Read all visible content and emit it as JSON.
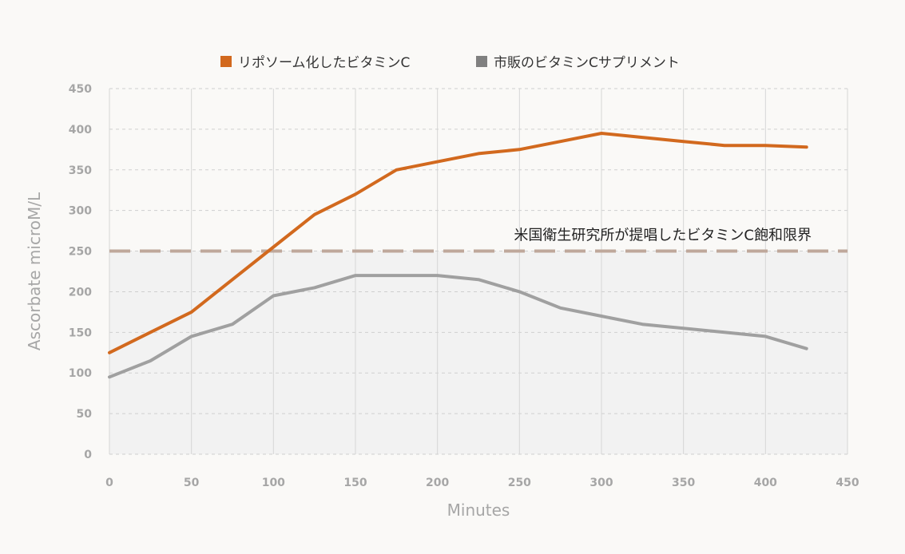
{
  "chart_data": {
    "type": "line",
    "xlabel": "Minutes",
    "ylabel": "Ascorbate microM/L",
    "xlim": [
      0,
      450
    ],
    "ylim": [
      0,
      450
    ],
    "xticks": [
      0,
      50,
      100,
      150,
      200,
      250,
      300,
      350,
      400,
      450
    ],
    "yticks": [
      0,
      50,
      100,
      150,
      200,
      250,
      300,
      350,
      400,
      450
    ],
    "grid": true,
    "legend_position": "top-center",
    "series": [
      {
        "name": "リポソーム化したビタミンC",
        "color": "#d2691e",
        "x": [
          0,
          25,
          50,
          75,
          100,
          125,
          150,
          175,
          200,
          225,
          250,
          275,
          300,
          325,
          350,
          375,
          400,
          425
        ],
        "y": [
          125,
          150,
          175,
          215,
          255,
          295,
          320,
          350,
          360,
          370,
          375,
          385,
          395,
          390,
          385,
          380,
          380,
          378
        ]
      },
      {
        "name": "市販のビタミンCサプリメント",
        "color": "#a0a0a0",
        "x": [
          0,
          25,
          50,
          75,
          100,
          125,
          150,
          175,
          200,
          225,
          250,
          275,
          300,
          325,
          350,
          375,
          400,
          425
        ],
        "y": [
          95,
          115,
          145,
          160,
          195,
          205,
          220,
          220,
          220,
          215,
          200,
          180,
          170,
          160,
          155,
          150,
          145,
          130
        ]
      }
    ],
    "reference_line": {
      "y": 250,
      "label": "米国衛生研究所が提唱したビタミンC飽和限界",
      "color": "#bfa89b"
    },
    "shaded_region": {
      "y_from": 0,
      "y_to": 250,
      "color": "#f2f2f2"
    },
    "legend_square_colors": [
      "#d2691e",
      "#808080"
    ]
  }
}
